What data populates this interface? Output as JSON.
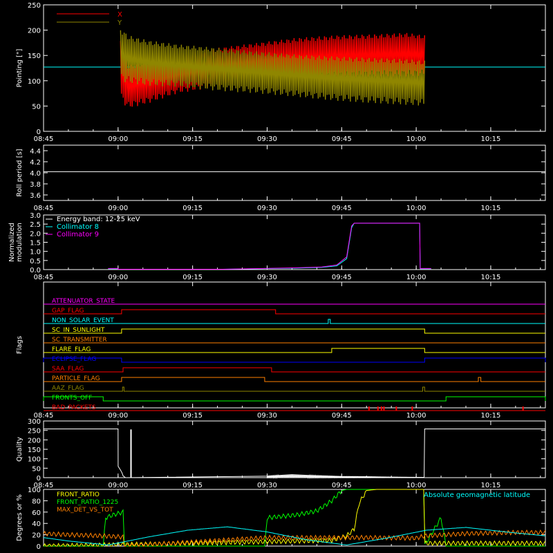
{
  "time_axis": {
    "ticks": [
      "08:45",
      "09:00",
      "09:15",
      "09:30",
      "09:45",
      "10:00",
      "10:15"
    ],
    "tick_minutes": [
      525,
      540,
      555,
      570,
      585,
      600,
      615
    ],
    "range_minutes": [
      525,
      626
    ]
  },
  "colors": {
    "background": "#000000",
    "axis": "#ffffff",
    "x_red": "#ff0000",
    "y_olive": "#8f8600",
    "cyan": "#00ffff",
    "magenta": "#ff00ff",
    "green": "#00ff00",
    "orange": "#ff8000",
    "yellow": "#ffff00",
    "blue": "#0000ff"
  },
  "chart_data": [
    {
      "id": "pointing",
      "type": "line",
      "ylabel": "Pointing [\"]",
      "ylim": [
        0,
        250
      ],
      "yticks": [
        0,
        50,
        100,
        150,
        200,
        250
      ],
      "legend": [
        {
          "name": "X",
          "color": "#ff0000"
        },
        {
          "name": "Y",
          "color": "#8f8600"
        }
      ],
      "reference_y": 127,
      "active_range": [
        540.5,
        601.7
      ],
      "series": [
        {
          "name": "X",
          "color": "#ff0000",
          "envelope": {
            "t": [
              540.5,
              542,
              546,
              552,
              560,
              568,
              576,
              584,
              592,
              598,
              601.7
            ],
            "low": [
              60,
              45,
              55,
              75,
              88,
              95,
              100,
              105,
              108,
              108,
              110
            ],
            "high": [
              185,
              130,
              140,
              150,
              165,
              175,
              185,
              190,
              192,
              195,
              190
            ]
          }
        },
        {
          "name": "Y",
          "color": "#8f8600",
          "envelope": {
            "t": [
              540.5,
              542,
              546,
              552,
              560,
              568,
              576,
              584,
              592,
              598,
              601.7
            ],
            "low": [
              100,
              95,
              90,
              88,
              80,
              75,
              68,
              60,
              55,
              52,
              50
            ],
            "high": [
              205,
              190,
              180,
              172,
              165,
              158,
              152,
              148,
              145,
              143,
              140
            ]
          }
        }
      ]
    },
    {
      "id": "roll",
      "type": "line",
      "ylabel": "Roll period [s]",
      "ylim": [
        3.5,
        4.5
      ],
      "yticks": [
        3.6,
        3.8,
        4.0,
        4.2,
        4.4
      ],
      "series": [
        {
          "name": "",
          "color": "#ffffff",
          "t": [
            525,
            626
          ],
          "values": [
            4.02,
            4.02
          ]
        }
      ]
    },
    {
      "id": "modulation",
      "type": "line",
      "ylabel": "Normalized modulation",
      "ylim": [
        0,
        3.0
      ],
      "yticks": [
        0.0,
        0.5,
        1.0,
        1.5,
        2.0,
        2.5,
        3.0
      ],
      "legend": [
        {
          "name": "Energy band: 12-25 keV",
          "color": "#ffffff"
        },
        {
          "name": "Collimator 8",
          "color": "#00ffff"
        },
        {
          "name": "Collimator 9",
          "color": "#ff00ff"
        }
      ],
      "series": [
        {
          "name": "Collimator 8",
          "color": "#00ffff",
          "t": [
            538,
            540,
            540.01,
            561,
            576,
            581,
            584,
            586,
            587,
            587.5,
            600.7,
            600.8,
            603
          ],
          "values": [
            0.05,
            0.05,
            0.02,
            0.02,
            0.08,
            0.12,
            0.2,
            0.6,
            2.3,
            2.55,
            2.55,
            0.05,
            0.05
          ]
        },
        {
          "name": "Collimator 9",
          "color": "#ff00ff",
          "t": [
            538,
            540,
            540.01,
            561,
            576,
            581,
            584,
            586,
            587,
            587.5,
            600.7,
            600.8,
            603
          ],
          "values": [
            0.06,
            0.06,
            0.02,
            0.02,
            0.1,
            0.14,
            0.25,
            0.7,
            2.4,
            2.55,
            2.55,
            0.06,
            0.06
          ]
        }
      ]
    },
    {
      "id": "flags",
      "type": "line",
      "ylabel": "Flags",
      "flags": [
        {
          "name": "ATTENUATOR_STATE",
          "color": "#ff00ff",
          "segments": []
        },
        {
          "name": "GAP_FLAG",
          "color": "#ff0000",
          "segments": [
            [
              540.7,
              571.7
            ]
          ]
        },
        {
          "name": "NON_SOLAR_EVENT",
          "color": "#00ffff",
          "segments": [
            [
              582.3,
              582.7
            ]
          ]
        },
        {
          "name": "SC_IN_SUNLIGHT",
          "color": "#ffff00",
          "segments": [
            [
              540.7,
              601.7
            ]
          ]
        },
        {
          "name": "SC_TRANSMITTER",
          "color": "#ff8000",
          "segments": []
        },
        {
          "name": "FLARE_FLAG",
          "color": "#ffff00",
          "segments": [
            [
              583,
              601.7
            ]
          ]
        },
        {
          "name": "ECLIPSE_FLAG",
          "color": "#0000ff",
          "segments": [
            [
              525,
              540.7
            ],
            [
              601.7,
              626
            ]
          ]
        },
        {
          "name": "SAA_FLAG",
          "color": "#ff0000",
          "segments": [
            [
              541,
              570.9
            ]
          ]
        },
        {
          "name": "PARTICLE_FLAG",
          "color": "#ff8000",
          "segments": [
            [
              540.7,
              569.5
            ],
            [
              612.5,
              613
            ]
          ]
        },
        {
          "name": "AAZ_FLAG",
          "color": "#8f8600",
          "segments": [
            [
              540.9,
              541.2
            ],
            [
              601.3,
              601.7
            ]
          ]
        },
        {
          "name": "FRONTS_OFF",
          "color": "#00ff00",
          "segments": [
            [
              525,
              537
            ],
            [
              606,
              626
            ]
          ]
        },
        {
          "name": "BAD_PACKETS",
          "color": "#ff0000",
          "spikes": [
            590.5,
            592.3,
            593.0,
            593.5,
            596.0,
            599.2,
            621.5
          ]
        }
      ]
    },
    {
      "id": "quality",
      "type": "area",
      "ylabel": "Quality",
      "ylim": [
        0,
        300
      ],
      "yticks": [
        0,
        50,
        100,
        150,
        200,
        250,
        300
      ],
      "series": [
        {
          "name": "",
          "color": "#ffffff",
          "t": [
            525,
            540,
            540.01,
            540.5,
            540.8,
            541,
            541.5,
            570,
            575,
            580,
            585,
            590,
            595,
            600,
            601.6,
            601.7,
            626
          ],
          "values": [
            258,
            258,
            60,
            40,
            25,
            10,
            0,
            8,
            16,
            10,
            6,
            5,
            3,
            2,
            2,
            258,
            258
          ]
        }
      ],
      "spike": {
        "t": 542.6,
        "value": 255
      }
    },
    {
      "id": "degrees",
      "type": "line",
      "ylabel": "Degrees or %",
      "ylim": [
        0,
        100
      ],
      "yticks": [
        0,
        20,
        40,
        60,
        80,
        100
      ],
      "legend": [
        {
          "name": "FRONT_RATIO",
          "color": "#ffff00"
        },
        {
          "name": "FRONT_RATIO_1225",
          "color": "#00ff00"
        },
        {
          "name": "MAX_DET_VS_TOT",
          "color": "#ff8000"
        }
      ],
      "annotation": {
        "text": "Absolute geomagnetic latitude",
        "color": "#00ffff"
      },
      "series": [
        {
          "name": "FRONT_RATIO_1225",
          "color": "#00ff00",
          "t": [
            525,
            537,
            537.5,
            539,
            541,
            541.3,
            569.5,
            570,
            576,
            580,
            583,
            585,
            586,
            601.5,
            601.6,
            605,
            606,
            626
          ],
          "values": [
            0,
            0,
            50,
            55,
            60,
            0,
            0,
            50,
            55,
            62,
            80,
            98,
            100,
            100,
            0,
            50,
            0,
            0
          ]
        },
        {
          "name": "FRONT_RATIO",
          "color": "#ffff00",
          "t": [
            525,
            583,
            586,
            587.5,
            588.5,
            590,
            592,
            601.5,
            601.6,
            626
          ],
          "values": [
            0,
            10,
            18,
            30,
            75,
            98,
            100,
            100,
            5,
            5
          ]
        },
        {
          "name": "MAX_DET_VS_TOT",
          "color": "#ff8000",
          "t": [
            525,
            530,
            537,
            541,
            541.3,
            570,
            580,
            585,
            590,
            600,
            601.7,
            610,
            620,
            626
          ],
          "values": [
            22,
            20,
            18,
            16,
            0,
            15,
            15,
            15,
            15,
            14,
            18,
            22,
            24,
            24
          ]
        },
        {
          "name": "Absolute geomagnetic latitude",
          "color": "#00ffff",
          "t": [
            525,
            530,
            538,
            546,
            554,
            562,
            570,
            578,
            586,
            594,
            602,
            610,
            618,
            626
          ],
          "values": [
            15,
            9,
            2,
            16,
            28,
            34,
            25,
            11,
            2,
            14,
            28,
            33,
            25,
            18
          ]
        }
      ]
    }
  ]
}
